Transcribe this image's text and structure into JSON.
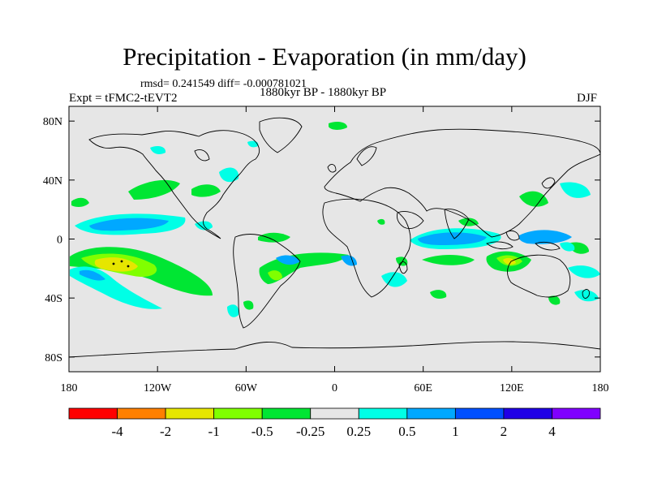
{
  "title": "Precipitation - Evaporation (in mm/day)",
  "stats_line": "rmsd= 0.241549 diff= -0.000781021",
  "period_line": "1880kyr BP - 1880kyr BP",
  "experiment_label": "Expt = tFMC2-tEVT2",
  "season_label": "DJF",
  "map": {
    "lon_range": [
      -180,
      180
    ],
    "lat_range": [
      -90,
      90
    ],
    "lat_ticks": [
      {
        "lat": 80,
        "label": "80N"
      },
      {
        "lat": 40,
        "label": "40N"
      },
      {
        "lat": 0,
        "label": "0"
      },
      {
        "lat": -40,
        "label": "40S"
      },
      {
        "lat": -80,
        "label": "80S"
      }
    ],
    "lon_ticks": [
      {
        "lon": -180,
        "label": "180"
      },
      {
        "lon": -120,
        "label": "120W"
      },
      {
        "lon": -60,
        "label": "60W"
      },
      {
        "lon": 0,
        "label": "0"
      },
      {
        "lon": 60,
        "label": "60E"
      },
      {
        "lon": 120,
        "label": "120E"
      },
      {
        "lon": 180,
        "label": "180"
      }
    ]
  },
  "colorbar": {
    "colors": [
      "#ff0000",
      "#ff8000",
      "#e6e600",
      "#80ff00",
      "#00e633",
      "#e6e6e6",
      "#00ffe6",
      "#00a8ff",
      "#0050ff",
      "#2000e6",
      "#8000ff"
    ],
    "labels": [
      "-4",
      "-2",
      "-1",
      "-0.5",
      "-0.25",
      "0.25",
      "0.5",
      "1",
      "2",
      "4"
    ]
  },
  "colors": {
    "background": "#e6e6e6",
    "coast": "#000000"
  }
}
